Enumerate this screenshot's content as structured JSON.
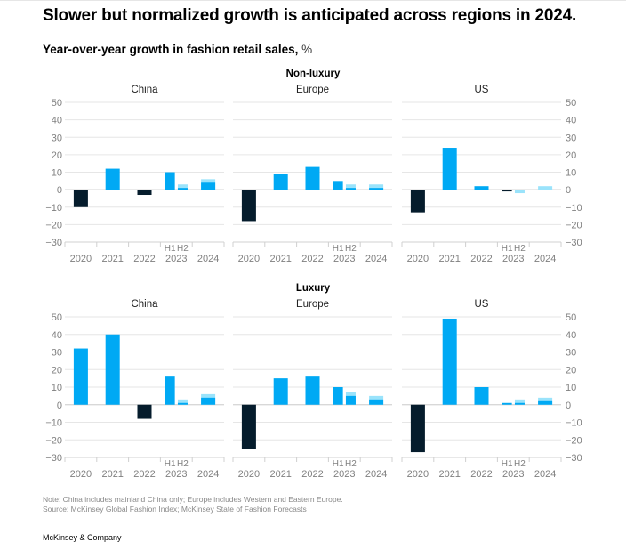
{
  "title": "Slower but normalized growth is anticipated across regions in 2024.",
  "subtitle": {
    "main": "Year-over-year growth in fashion retail sales,",
    "unit": " %"
  },
  "notes": {
    "note": "Note: China includes mainland China only; Europe includes Western and Eastern Europe.",
    "source": "Source: McKinsey Global Fashion Index; McKinsey State of Fashion Forecasts"
  },
  "brand": "McKinsey & Company",
  "colors": {
    "positive": "#00a9f4",
    "negative": "#051c2c",
    "forecast_range": "#9ae3fb",
    "grid": "#e6e6e6",
    "axis": "#d0d0d0",
    "tick_text": "#808080"
  },
  "chart_data": {
    "type": "bar",
    "title": "Year-over-year growth in fashion retail sales, %",
    "xlabel": "",
    "ylabel": "%",
    "ylim": [
      -30,
      50
    ],
    "yticks": [
      50,
      40,
      30,
      20,
      10,
      0,
      -10,
      -20,
      -30
    ],
    "categories": [
      "2020",
      "2021",
      "2022",
      "2023",
      "2024"
    ],
    "sub_categories_2023": [
      "H1",
      "H2"
    ],
    "grid": true,
    "legend": "none",
    "groups": [
      {
        "name": "Non-luxury",
        "panels": [
          {
            "region": "China",
            "bars": [
              {
                "x": "2020",
                "value": -10
              },
              {
                "x": "2021",
                "value": 12
              },
              {
                "x": "2022",
                "value": -3
              },
              {
                "x": "2023 H1",
                "value": 10
              },
              {
                "x": "2023 H2",
                "value": 1,
                "range_to": 3
              },
              {
                "x": "2024",
                "value": 4,
                "range_to": 6
              }
            ]
          },
          {
            "region": "Europe",
            "bars": [
              {
                "x": "2020",
                "value": -18
              },
              {
                "x": "2021",
                "value": 9
              },
              {
                "x": "2022",
                "value": 13
              },
              {
                "x": "2023 H1",
                "value": 5
              },
              {
                "x": "2023 H2",
                "value": 1,
                "range_to": 3
              },
              {
                "x": "2024",
                "value": 1,
                "range_to": 3
              }
            ]
          },
          {
            "region": "US",
            "bars": [
              {
                "x": "2020",
                "value": -13
              },
              {
                "x": "2021",
                "value": 24
              },
              {
                "x": "2022",
                "value": 2
              },
              {
                "x": "2023 H1",
                "value": -1
              },
              {
                "x": "2023 H2",
                "value": 0,
                "range_to": -2
              },
              {
                "x": "2024",
                "value": 0,
                "range_to": 2
              }
            ]
          }
        ]
      },
      {
        "name": "Luxury",
        "panels": [
          {
            "region": "China",
            "bars": [
              {
                "x": "2020",
                "value": 32
              },
              {
                "x": "2021",
                "value": 40
              },
              {
                "x": "2022",
                "value": -8
              },
              {
                "x": "2023 H1",
                "value": 16
              },
              {
                "x": "2023 H2",
                "value": 1,
                "range_to": 3
              },
              {
                "x": "2024",
                "value": 4,
                "range_to": 6
              }
            ]
          },
          {
            "region": "Europe",
            "bars": [
              {
                "x": "2020",
                "value": -25
              },
              {
                "x": "2021",
                "value": 15
              },
              {
                "x": "2022",
                "value": 16
              },
              {
                "x": "2023 H1",
                "value": 10
              },
              {
                "x": "2023 H2",
                "value": 5,
                "range_to": 7
              },
              {
                "x": "2024",
                "value": 3,
                "range_to": 5
              }
            ]
          },
          {
            "region": "US",
            "bars": [
              {
                "x": "2020",
                "value": -27
              },
              {
                "x": "2021",
                "value": 49
              },
              {
                "x": "2022",
                "value": 10
              },
              {
                "x": "2023 H1",
                "value": 1
              },
              {
                "x": "2023 H2",
                "value": 1,
                "range_to": 3
              },
              {
                "x": "2024",
                "value": 2,
                "range_to": 4
              }
            ]
          }
        ]
      }
    ]
  }
}
